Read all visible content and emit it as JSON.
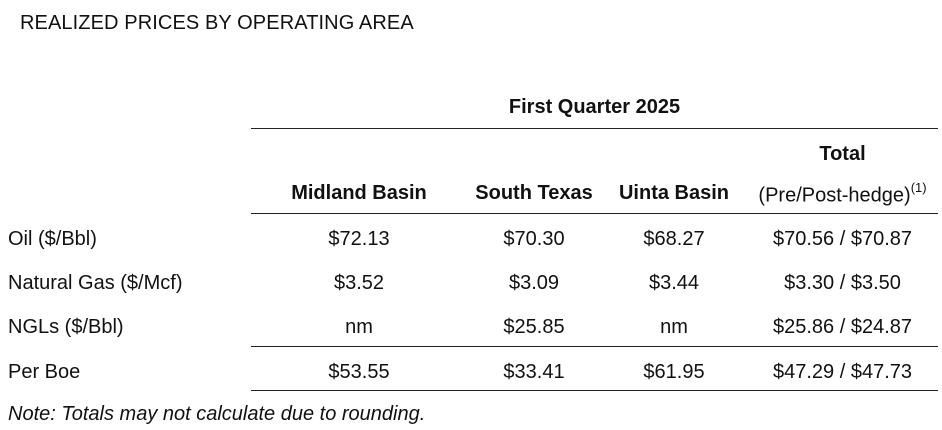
{
  "title": "REALIZED PRICES BY OPERATING AREA",
  "section_header": "First Quarter 2025",
  "columns": {
    "midland": "Midland Basin",
    "south_texas": "South Texas",
    "uinta": "Uinta Basin",
    "total_top": "Total",
    "total_sub": "(Pre/Post-hedge)",
    "total_footnote": "(1)"
  },
  "rows": [
    {
      "label": "Oil ($/Bbl)",
      "midland": "$72.13",
      "south_texas": "$70.30",
      "uinta": "$68.27",
      "total": "$70.56 / $70.87"
    },
    {
      "label": "Natural Gas ($/Mcf)",
      "midland": "$3.52",
      "south_texas": "$3.09",
      "uinta": "$3.44",
      "total": "$3.30 / $3.50"
    },
    {
      "label": "NGLs ($/Bbl)",
      "midland": "nm",
      "south_texas": "$25.85",
      "uinta": "nm",
      "total": "$25.86 / $24.87"
    },
    {
      "label": "Per Boe",
      "midland": "$53.55",
      "south_texas": "$33.41",
      "uinta": "$61.95",
      "total": "$47.29 / $47.73"
    }
  ],
  "note": "Note: Totals may not calculate due to rounding."
}
